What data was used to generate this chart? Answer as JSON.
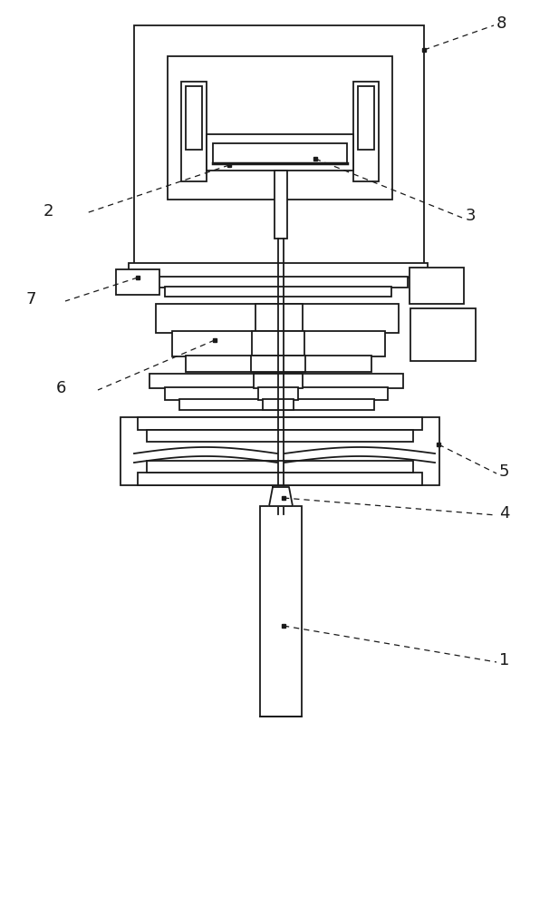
{
  "bg_color": "#ffffff",
  "line_color": "#1a1a1a",
  "lw": 1.3,
  "fig_w": 6.17,
  "fig_h": 10.0
}
